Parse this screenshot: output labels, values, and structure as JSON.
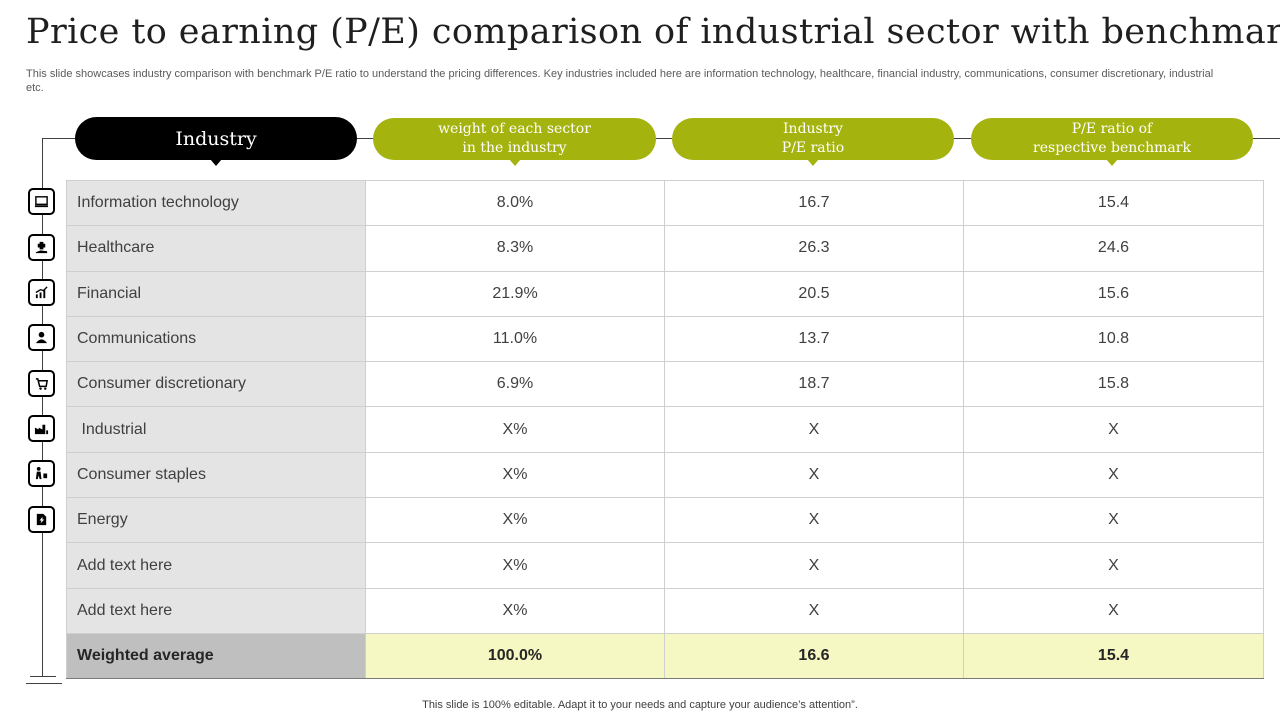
{
  "title": "Price to earning (P/E) comparison of industrial sector with benchmark",
  "subtitle": "This slide showcases industry comparison with benchmark P/E ratio to understand the pricing differences. Key industries included here are information technology, healthcare, financial industry, communications, consumer discretionary, industrial etc.",
  "headers": {
    "industry": "Industry",
    "weight_line1": "weight of each sector",
    "weight_line2": "in the industry",
    "pe_line1": "Industry",
    "pe_line2": "P/E ratio",
    "bench_line1": "P/E ratio of",
    "bench_line2": "respective benchmark"
  },
  "rows": [
    {
      "name": "Information  technology",
      "weight": "8.0%",
      "pe": "16.7",
      "bench": "15.4",
      "icon": "computer-icon"
    },
    {
      "name": "Healthcare",
      "weight": "8.3%",
      "pe": "26.3",
      "bench": "24.6",
      "icon": "healthcare-hand-icon"
    },
    {
      "name": "Financial",
      "weight": "21.9%",
      "pe": "20.5",
      "bench": "15.6",
      "icon": "growth-chart-icon"
    },
    {
      "name": "Communications",
      "weight": "11.0%",
      "pe": "13.7",
      "bench": "10.8",
      "icon": "communication-person-icon"
    },
    {
      "name": "Consumer discretionary",
      "weight": "6.9%",
      "pe": "18.7",
      "bench": "15.8",
      "icon": "consumer-cart-icon"
    },
    {
      "name": " Industrial",
      "weight": "X%",
      "pe": "X",
      "bench": "X",
      "icon": "factory-icon"
    },
    {
      "name": "Consumer staples",
      "weight": "X%",
      "pe": "X",
      "bench": "X",
      "icon": "shopping-person-icon"
    },
    {
      "name": "Energy",
      "weight": "X%",
      "pe": "X",
      "bench": "X",
      "icon": "energy-document-icon"
    },
    {
      "name": "Add text here",
      "weight": "X%",
      "pe": "X",
      "bench": "X"
    },
    {
      "name": "Add text here",
      "weight": "X%",
      "pe": "X",
      "bench": "X"
    }
  ],
  "total": {
    "name": "Weighted average",
    "weight": "100.0%",
    "pe": "16.6",
    "bench": "15.4"
  },
  "footer": "This slide is 100% editable. Adapt it to your needs and capture your audience’s attention”.",
  "colors": {
    "accent_green": "#a5b30f",
    "header_black": "#000000",
    "total_row": "#f5f8c2",
    "label_column": "#e4e4e4"
  }
}
